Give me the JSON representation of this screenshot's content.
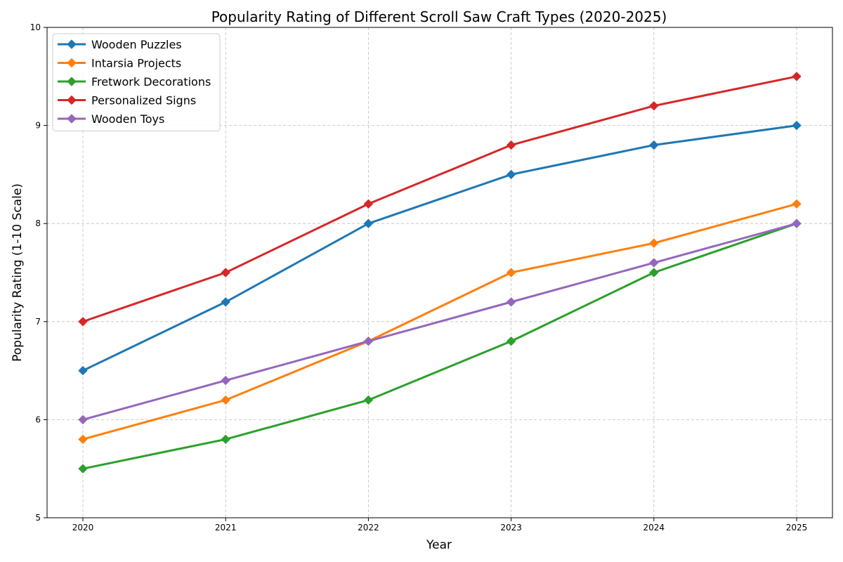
{
  "chart_data": {
    "type": "line",
    "title": "Popularity Rating of Different Scroll Saw Craft Types (2020-2025)",
    "xlabel": "Year",
    "ylabel": "Popularity Rating (1-10 Scale)",
    "x": [
      "2020",
      "2021",
      "2022",
      "2023",
      "2024",
      "2025"
    ],
    "ylim": [
      5,
      10
    ],
    "yticks": [
      5,
      6,
      7,
      8,
      9,
      10
    ],
    "grid": true,
    "legend_position": "top-left",
    "marker": "diamond",
    "series": [
      {
        "name": "Wooden Puzzles",
        "color": "#1f77b4",
        "values": [
          6.5,
          7.2,
          8.0,
          8.5,
          8.8,
          9.0
        ]
      },
      {
        "name": "Intarsia Projects",
        "color": "#ff7f0e",
        "values": [
          5.8,
          6.2,
          6.8,
          7.5,
          7.8,
          8.2
        ]
      },
      {
        "name": "Fretwork Decorations",
        "color": "#2ca02c",
        "values": [
          5.5,
          5.8,
          6.2,
          6.8,
          7.5,
          8.0
        ]
      },
      {
        "name": "Personalized Signs",
        "color": "#d62728",
        "values": [
          7.0,
          7.5,
          8.2,
          8.8,
          9.2,
          9.5
        ]
      },
      {
        "name": "Wooden Toys",
        "color": "#9467bd",
        "values": [
          6.0,
          6.4,
          6.8,
          7.2,
          7.6,
          8.0
        ]
      }
    ]
  }
}
